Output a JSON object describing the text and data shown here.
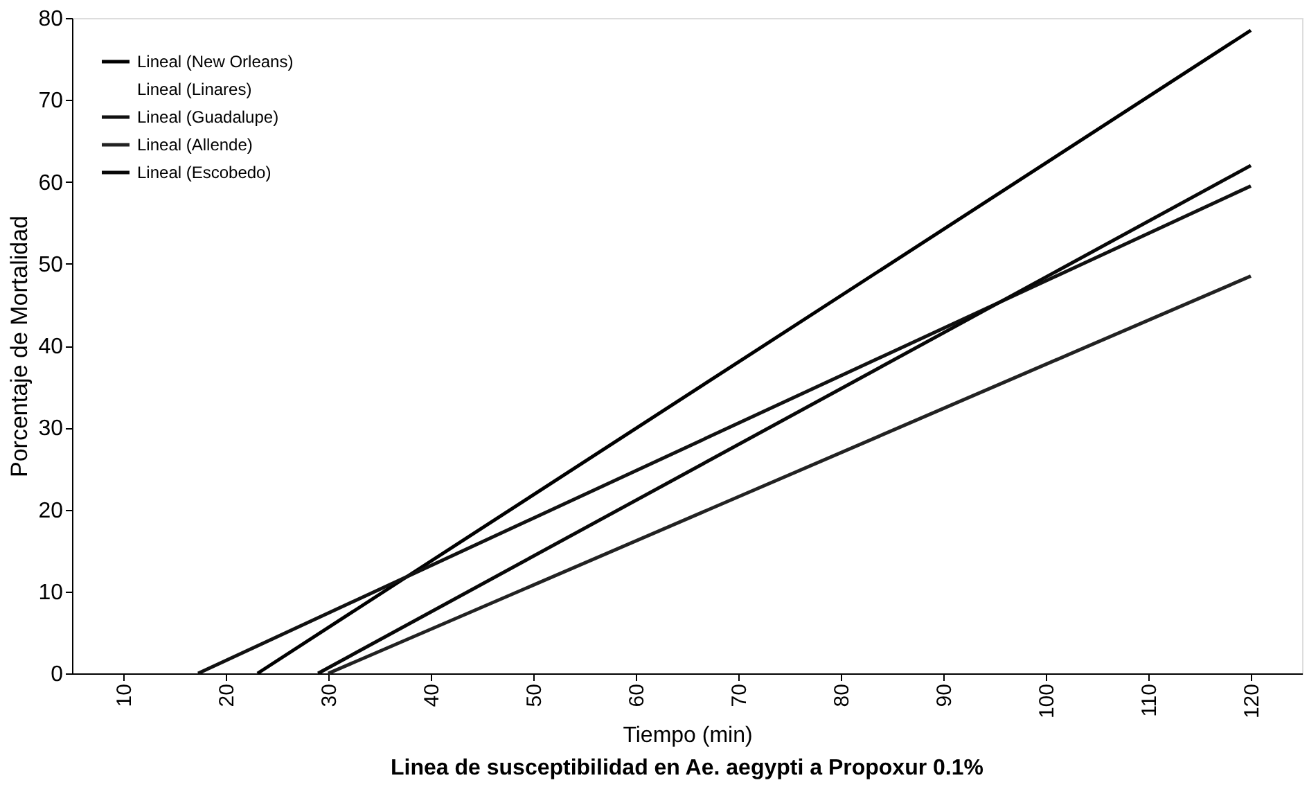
{
  "chart_data": {
    "type": "line",
    "title": "Linea de susceptibilidad en Ae. aegypti a Propoxur 0.1%",
    "xlabel": "Tiempo (min)",
    "ylabel": "Porcentaje de Mortalidad",
    "xlim": [
      5,
      125
    ],
    "xticks": [
      10,
      20,
      30,
      40,
      50,
      60,
      70,
      80,
      90,
      100,
      110,
      120
    ],
    "ylim": [
      0,
      80
    ],
    "yticks": [
      0,
      10,
      20,
      30,
      40,
      50,
      60,
      70,
      80
    ],
    "grid": false,
    "legend": "top left",
    "marker": "none",
    "line_style": "solid",
    "series": [
      {
        "name": "Lineal (New Orleans)",
        "color": "#000000",
        "x": [
          23.1,
          120
        ],
        "values": [
          0,
          78.5
        ]
      },
      {
        "name": "Lineal (Linares)"
      },
      {
        "name": "Lineal (Guadalupe)",
        "color": "#111111",
        "x": [
          17.3,
          120
        ],
        "values": [
          0,
          59.5
        ]
      },
      {
        "name": "Lineal (Allende)",
        "color": "#222222",
        "x": [
          30.0,
          120
        ],
        "values": [
          0,
          48.5
        ]
      },
      {
        "name": "Lineal (Escobedo)",
        "color": "#080808",
        "x": [
          29.0,
          120
        ],
        "values": [
          0,
          62
        ]
      }
    ]
  }
}
